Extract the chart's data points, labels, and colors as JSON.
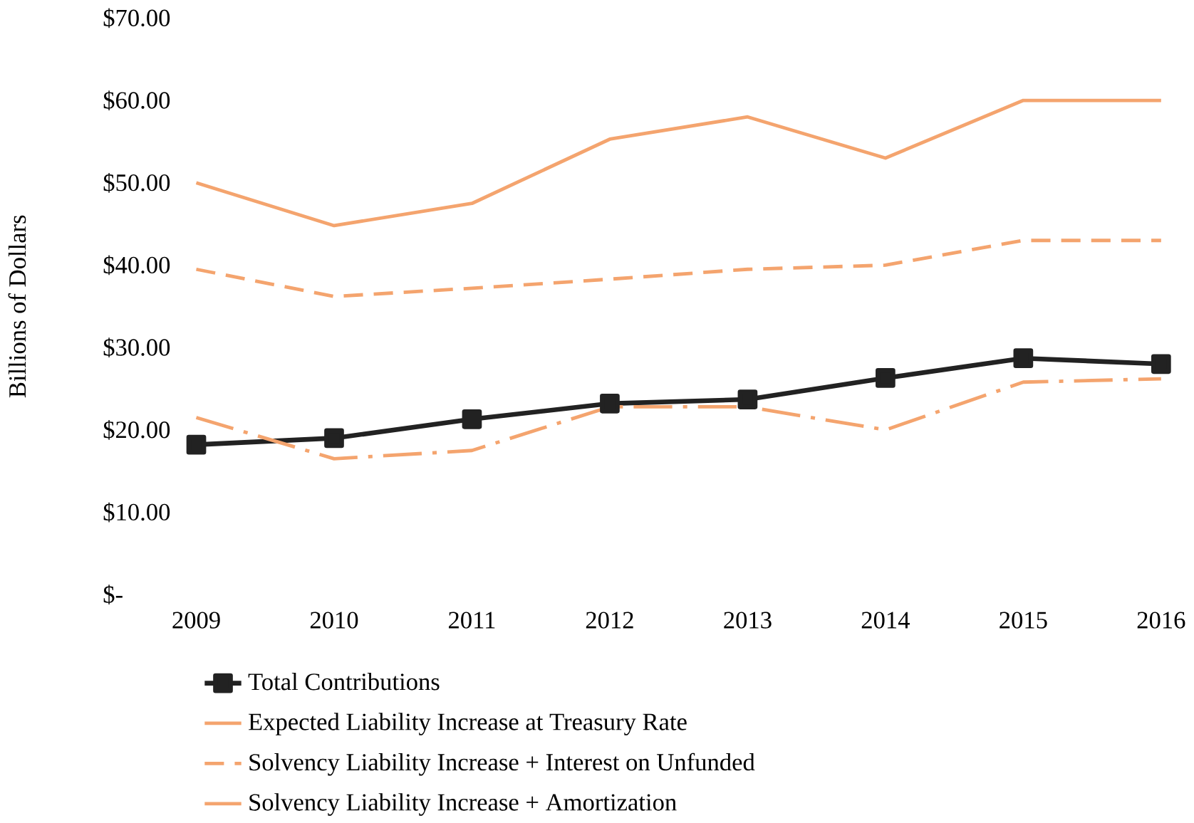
{
  "chart_data": {
    "type": "line",
    "ylabel": "Billions of Dollars",
    "categories": [
      "2009",
      "2010",
      "2011",
      "2012",
      "2013",
      "2014",
      "2015",
      "2016"
    ],
    "ylim": [
      0,
      70
    ],
    "yticks": [
      {
        "value": 0,
        "label": "$-"
      },
      {
        "value": 10,
        "label": "$10.00"
      },
      {
        "value": 20,
        "label": "$20.00"
      },
      {
        "value": 30,
        "label": "$30.00"
      },
      {
        "value": 40,
        "label": "$40.00"
      },
      {
        "value": 50,
        "label": "$50.00"
      },
      {
        "value": 60,
        "label": "$60.00"
      },
      {
        "value": 70,
        "label": "$70.00"
      }
    ],
    "legend": "bottom",
    "series": [
      {
        "name": "Total Contributions",
        "color": "#222222",
        "marker": "square",
        "line_style": "solid",
        "values": [
          18.2,
          19.0,
          21.3,
          23.2,
          23.7,
          26.3,
          28.7,
          28.0
        ]
      },
      {
        "name": "Expected Liability Increase at Treasury Rate",
        "color": "#f4a46e",
        "marker": "none",
        "line_style": "dashdot",
        "values": [
          21.5,
          16.5,
          17.5,
          22.8,
          22.8,
          20.0,
          25.8,
          26.2
        ]
      },
      {
        "name": "Solvency Liability Increase + Interest on Unfunded",
        "color": "#f4a46e",
        "marker": "none",
        "line_style": "dashed",
        "values": [
          39.5,
          36.2,
          37.2,
          38.3,
          39.5,
          40.0,
          43.0,
          43.0
        ]
      },
      {
        "name": "Solvency Liability Increase + Amortization",
        "color": "#f4a46e",
        "marker": "none",
        "line_style": "solid",
        "values": [
          50.0,
          44.8,
          47.5,
          55.3,
          58.0,
          53.0,
          60.0,
          60.0
        ]
      }
    ]
  }
}
